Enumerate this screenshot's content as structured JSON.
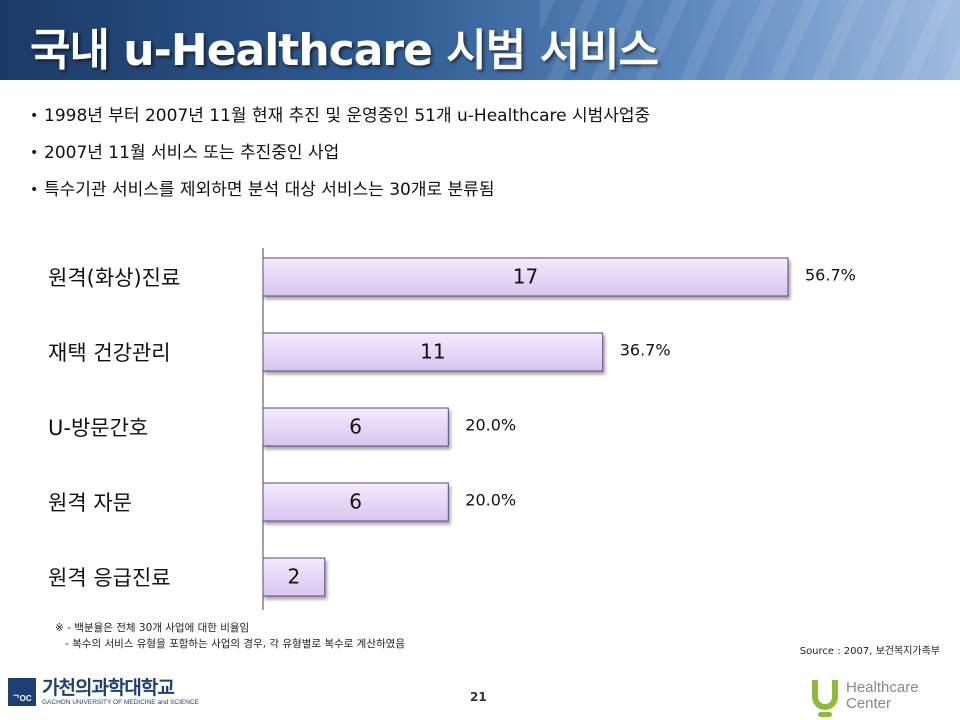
{
  "title": "국내 u-Healthcare 시범 서비스",
  "bullets": [
    "1998년 부터 2007년 11월 현재 추진 및 운영중인 51개 u-Healthcare 시범사업중",
    "2007년 11월 서비스 또는 추진중인 사업",
    "특수기관 서비스를 제외하면 분석 대상 서비스는 30개로 분류됨"
  ],
  "chart_data": {
    "type": "bar",
    "orientation": "horizontal",
    "categories": [
      "원격(화상)진료",
      "재택 건강관리",
      "U-방문간호",
      "원격 자문",
      "원격 응급진료"
    ],
    "values": [
      17,
      11,
      6,
      6,
      2
    ],
    "percent_labels": [
      "56.7%",
      "36.7%",
      "20.0%",
      "20.0%",
      ""
    ],
    "xlim": [
      0,
      17
    ],
    "bar_color": "#d9c4f0"
  },
  "notes": [
    "※ - 백분율은 전체 30개 사업에 대한 비율임",
    "   - 복수의 서비스 유형을 포함하는 사업의 경우, 각 유형별로 복수로 계산하였음"
  ],
  "source": "Source : 2007, 보건복지가족부",
  "page_number": "21",
  "logo_left": {
    "name": "가천의과학대학교",
    "eng": "GACHON UNIVERSITY OF MEDICINE and SCIENCE",
    "mark": "ᄀOC"
  },
  "logo_right": {
    "line1": "Healthcare",
    "line2": "Center"
  },
  "colors": {
    "header_dark": "#1c3a66",
    "bar_fill": "#d9c4f0",
    "bar_stroke": "#5a4a7a"
  }
}
